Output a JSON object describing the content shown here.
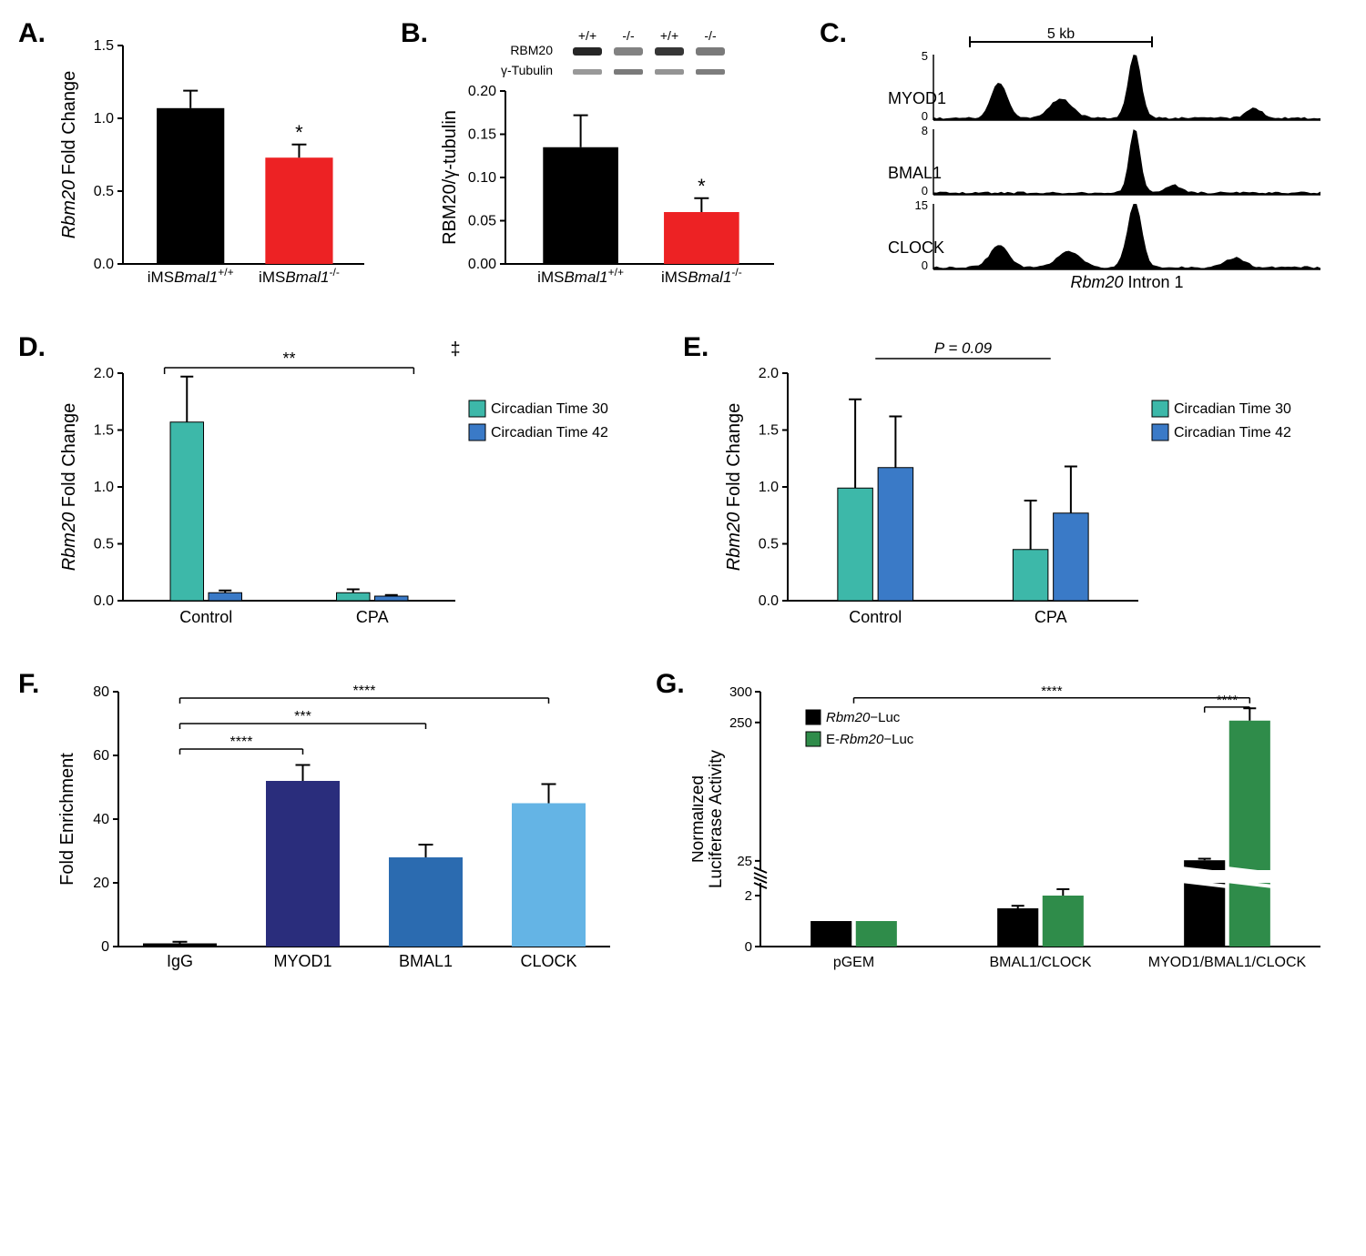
{
  "labels": {
    "A": "A.",
    "B": "B.",
    "C": "C.",
    "D": "D.",
    "E": "E.",
    "F": "F.",
    "G": "G."
  },
  "colors": {
    "black": "#000000",
    "red": "#ed2224",
    "teal": "#3db8a9",
    "blue": "#3a7ac7",
    "darknavy": "#2a2d7c",
    "midblue": "#2b6bb0",
    "lightblue": "#64b4e5",
    "green": "#2f8c4a",
    "grey": "#888888"
  },
  "A": {
    "ylabel": "Rbm20 Fold Change",
    "ymax": 1.5,
    "yticks": [
      0.0,
      0.5,
      1.0,
      1.5
    ],
    "categories": [
      "iMSBmal1+/+",
      "iMSBmal1-/-"
    ],
    "values": [
      1.07,
      0.73
    ],
    "errors": [
      0.12,
      0.09
    ],
    "bar_colors": [
      "#000000",
      "#ed2224"
    ],
    "sig": "*"
  },
  "B": {
    "ylabel": "RBM20/γ-tubulin",
    "ymax": 0.2,
    "yticks": [
      0.0,
      0.05,
      0.1,
      0.15,
      0.2
    ],
    "categories": [
      "iMSBmal1+/+",
      "iMSBmal1-/-"
    ],
    "values": [
      0.135,
      0.06
    ],
    "errors": [
      0.037,
      0.016
    ],
    "bar_colors": [
      "#000000",
      "#ed2224"
    ],
    "sig": "*",
    "blot_lanes": [
      "+/+",
      "-/-",
      "+/+",
      "-/-"
    ],
    "blot_rows": [
      "RBM20",
      "γ-Tubulin"
    ]
  },
  "C": {
    "scale_label": "5 kb",
    "tracks": [
      {
        "name": "MYOD1",
        "ymax": 5,
        "peaks": [
          {
            "x": 0.17,
            "h": 0.55,
            "w": 0.05
          },
          {
            "x": 0.33,
            "h": 0.3,
            "w": 0.07
          },
          {
            "x": 0.52,
            "h": 1.0,
            "w": 0.04
          },
          {
            "x": 0.83,
            "h": 0.15,
            "w": 0.05
          }
        ]
      },
      {
        "name": "BMAL1",
        "ymax": 8,
        "peaks": [
          {
            "x": 0.52,
            "h": 1.0,
            "w": 0.035
          },
          {
            "x": 0.62,
            "h": 0.12,
            "w": 0.05
          }
        ]
      },
      {
        "name": "CLOCK",
        "ymax": 15,
        "peaks": [
          {
            "x": 0.17,
            "h": 0.33,
            "w": 0.06
          },
          {
            "x": 0.35,
            "h": 0.25,
            "w": 0.07
          },
          {
            "x": 0.52,
            "h": 1.0,
            "w": 0.045
          },
          {
            "x": 0.78,
            "h": 0.15,
            "w": 0.06
          }
        ]
      }
    ],
    "xlabel": "Rbm20 Intron 1"
  },
  "D": {
    "ylabel": "Rbm20 Fold Change",
    "ymax": 2.0,
    "yticks": [
      0.0,
      0.5,
      1.0,
      1.5,
      2.0
    ],
    "groups": [
      "Control",
      "CPA"
    ],
    "legend": [
      "Circadian Time 30",
      "Circadian Time 42"
    ],
    "legend_colors": [
      "#3db8a9",
      "#3a7ac7"
    ],
    "values": [
      [
        1.57,
        0.07
      ],
      [
        0.07,
        0.04
      ]
    ],
    "errors": [
      [
        0.4,
        0.02
      ],
      [
        0.03,
        0.01
      ]
    ],
    "sig_top": "‡",
    "sig_line": "**"
  },
  "E": {
    "ylabel": "Rbm20 Fold Change",
    "ymax": 2.0,
    "yticks": [
      0.0,
      0.5,
      1.0,
      1.5,
      2.0
    ],
    "groups": [
      "Control",
      "CPA"
    ],
    "legend": [
      "Circadian Time 30",
      "Circadian Time 42"
    ],
    "legend_colors": [
      "#3db8a9",
      "#3a7ac7"
    ],
    "values": [
      [
        0.99,
        1.17
      ],
      [
        0.45,
        0.77
      ]
    ],
    "errors": [
      [
        0.78,
        0.45
      ],
      [
        0.43,
        0.41
      ]
    ],
    "pval": "P = 0.09"
  },
  "F": {
    "ylabel": "Fold Enrichment",
    "ymax": 80,
    "yticks": [
      0,
      20,
      40,
      60,
      80
    ],
    "categories": [
      "IgG",
      "MYOD1",
      "BMAL1",
      "CLOCK"
    ],
    "values": [
      1,
      52,
      28,
      45
    ],
    "errors": [
      0.5,
      5,
      4,
      6
    ],
    "bar_colors": [
      "#000000",
      "#2a2d7c",
      "#2b6bb0",
      "#64b4e5"
    ],
    "sigs": [
      {
        "from": 0,
        "to": 1,
        "y": 62,
        "label": "****"
      },
      {
        "from": 0,
        "to": 2,
        "y": 70,
        "label": "***"
      },
      {
        "from": 0,
        "to": 3,
        "y": 78,
        "label": "****"
      }
    ]
  },
  "G": {
    "ylabel": "Normalized\nLuciferase Activity",
    "legend": [
      "Rbm20−Luc",
      "E-Rbm20−Luc"
    ],
    "legend_colors": [
      "#000000",
      "#2f8c4a"
    ],
    "groups": [
      "pGEM",
      "BMAL1/CLOCK",
      "MYOD1/BMAL1/CLOCK"
    ],
    "lower_ymax": 2.5,
    "lower_yticks": [
      0,
      2
    ],
    "upper_ymin": 10,
    "upper_ymax": 300,
    "upper_yticks": [
      25,
      250,
      300
    ],
    "values": [
      [
        1.0,
        1.0
      ],
      [
        1.5,
        2.0
      ],
      [
        26,
        253
      ]
    ],
    "errors": [
      [
        0,
        0
      ],
      [
        0.1,
        0.25
      ],
      [
        2.5,
        20
      ]
    ],
    "sigs": [
      {
        "label": "****",
        "from_group": 0,
        "to_group": 2,
        "y": 290
      },
      {
        "label": "****",
        "from_group": 2,
        "to_group": 2,
        "y": 275,
        "inner": true
      }
    ]
  }
}
